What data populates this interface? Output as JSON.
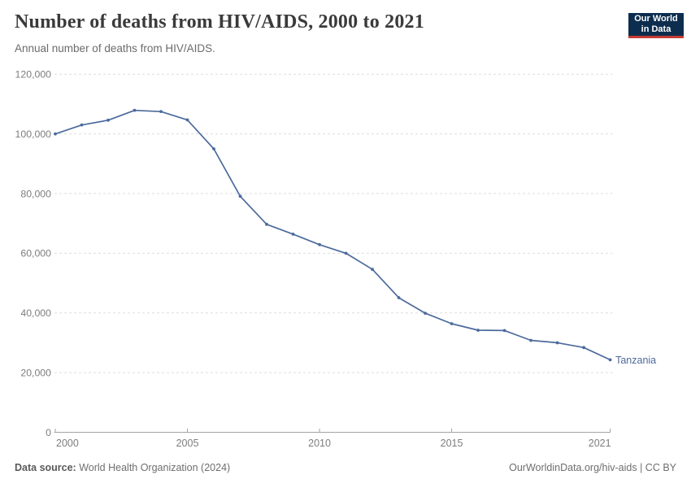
{
  "header": {
    "title": "Number of deaths from HIV/AIDS, 2000 to 2021",
    "subtitle": "Annual number of deaths from HIV/AIDS.",
    "logo": {
      "line1": "Our World",
      "line2": "in Data"
    }
  },
  "chart_data": {
    "type": "line",
    "title": "Number of deaths from HIV/AIDS, 2000 to 2021",
    "xlabel": "",
    "ylabel": "",
    "x": [
      2000,
      2001,
      2002,
      2003,
      2004,
      2005,
      2006,
      2007,
      2008,
      2009,
      2010,
      2011,
      2012,
      2013,
      2014,
      2015,
      2016,
      2017,
      2018,
      2019,
      2020,
      2021
    ],
    "series": [
      {
        "name": "Tanzania",
        "color": "#4C6A9C",
        "values": [
          100000,
          103000,
          104600,
          107900,
          107500,
          104700,
          95000,
          79100,
          69700,
          66400,
          62900,
          60000,
          54600,
          45100,
          39900,
          36400,
          34200,
          34100,
          30800,
          30000,
          28400,
          24300
        ]
      }
    ],
    "ylim": [
      0,
      120000
    ],
    "yticks": [
      0,
      20000,
      40000,
      60000,
      80000,
      100000,
      120000
    ],
    "ytick_labels": [
      "0",
      "20,000",
      "40,000",
      "60,000",
      "80,000",
      "100,000",
      "120,000"
    ],
    "xticks": [
      2000,
      2005,
      2010,
      2015,
      2021
    ],
    "xtick_labels": [
      "2000",
      "2005",
      "2010",
      "2015",
      "2021"
    ],
    "grid": "horizontal dashed",
    "legend": "line-end label"
  },
  "footer": {
    "source_label": "Data source:",
    "source_value": "World Health Organization (2024)",
    "link": "OurWorldinData.org/hiv-aids | CC BY"
  },
  "colors": {
    "line": "#4C6A9C",
    "grid": "#dddddd",
    "axis": "#a3a3a3",
    "tick_text": "#7d7d7d",
    "logo_bg": "#0d2d4e",
    "logo_stripe": "#c43a33"
  }
}
